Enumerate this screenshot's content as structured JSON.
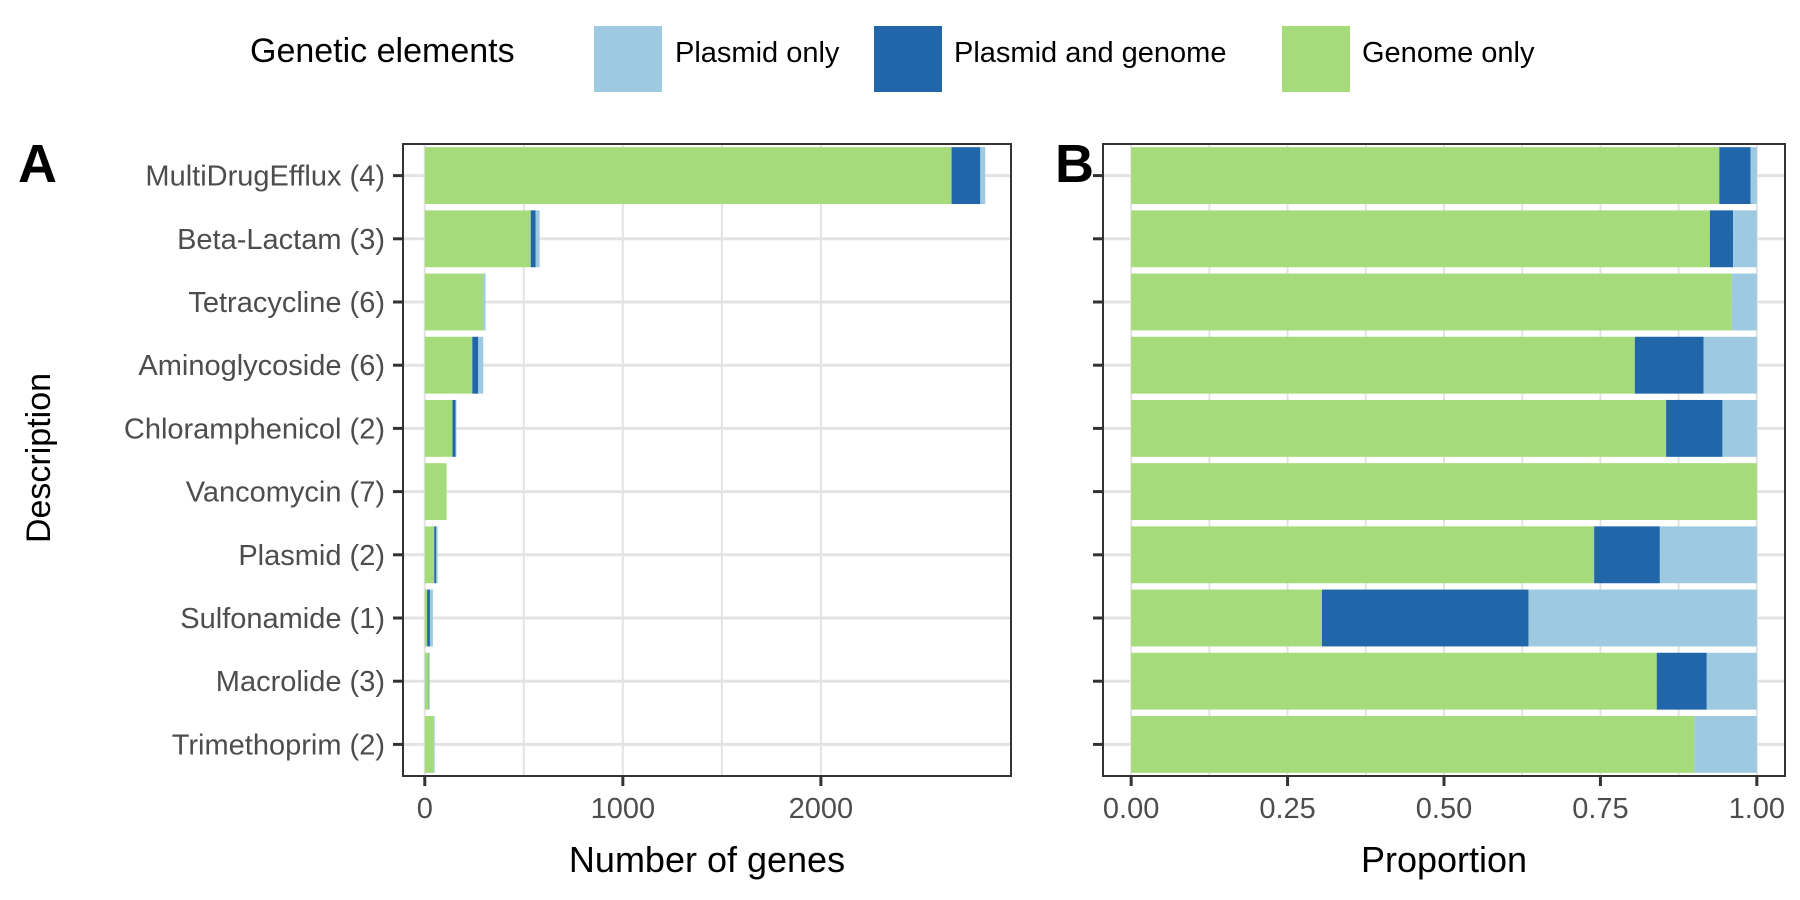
{
  "legend": {
    "title": "Genetic elements",
    "items": [
      {
        "label": "Plasmid only",
        "color": "#9ecae1"
      },
      {
        "label": "Plasmid and genome",
        "color": "#2066a8"
      },
      {
        "label": "Genome only",
        "color": "#a6db7b"
      }
    ]
  },
  "colors": {
    "genome_only": "#a6db7b",
    "plasmid_and_genome": "#2066a8",
    "plasmid_only": "#9ecae1",
    "grid": "#e3e3e3",
    "axis_text": "#4d4d4d",
    "panel_border": "#333333"
  },
  "y_axis_label": "Description",
  "categories": [
    "MultiDrugEfflux (4)",
    "Beta-Lactam (3)",
    "Tetracycline (6)",
    "Aminoglycoside (6)",
    "Chloramphenicol (2)",
    "Vancomycin (7)",
    "Plasmid (2)",
    "Sulfonamide (1)",
    "Macrolide (3)",
    "Trimethoprim (2)"
  ],
  "chart_data": [
    {
      "panel": "A",
      "type": "bar",
      "orientation": "horizontal",
      "stacked": true,
      "xlabel": "Number of genes",
      "ylabel": "Description",
      "xlim": [
        -110,
        2960
      ],
      "xticks": [
        0,
        1000,
        2000
      ],
      "grid": true,
      "legend_position": "top",
      "categories": [
        "MultiDrugEfflux (4)",
        "Beta-Lactam (3)",
        "Tetracycline (6)",
        "Aminoglycoside (6)",
        "Chloramphenicol (2)",
        "Vancomycin (7)",
        "Plasmid (2)",
        "Sulfonamide (1)",
        "Macrolide (3)",
        "Trimethoprim (2)"
      ],
      "series": [
        {
          "name": "Genome only",
          "color": "#a6db7b",
          "values": [
            2660,
            535,
            295,
            240,
            140,
            110,
            48,
            12,
            20,
            45
          ]
        },
        {
          "name": "Plasmid and genome",
          "color": "#2066a8",
          "values": [
            145,
            25,
            0,
            30,
            15,
            0,
            10,
            14,
            2,
            0
          ]
        },
        {
          "name": "Plasmid only",
          "color": "#9ecae1",
          "values": [
            25,
            20,
            12,
            25,
            5,
            0,
            7,
            15,
            3,
            5
          ]
        }
      ]
    },
    {
      "panel": "B",
      "type": "bar",
      "orientation": "horizontal",
      "stacked": true,
      "xlabel": "Proportion",
      "xlim": [
        -0.045,
        1.045
      ],
      "xticks": [
        "0.00",
        "0.25",
        "0.50",
        "0.75",
        "1.00"
      ],
      "xtick_values": [
        0,
        0.25,
        0.5,
        0.75,
        1.0
      ],
      "grid": true,
      "legend_position": "top",
      "categories": [
        "MultiDrugEfflux (4)",
        "Beta-Lactam (3)",
        "Tetracycline (6)",
        "Aminoglycoside (6)",
        "Chloramphenicol (2)",
        "Vancomycin (7)",
        "Plasmid (2)",
        "Sulfonamide (1)",
        "Macrolide (3)",
        "Trimethoprim (2)"
      ],
      "series": [
        {
          "name": "Genome only",
          "color": "#a6db7b",
          "values": [
            0.94,
            0.925,
            0.96,
            0.805,
            0.855,
            1.0,
            0.74,
            0.305,
            0.84,
            0.9
          ]
        },
        {
          "name": "Plasmid and genome",
          "color": "#2066a8",
          "values": [
            0.05,
            0.037,
            0.0,
            0.11,
            0.09,
            0.0,
            0.105,
            0.33,
            0.08,
            0.0
          ]
        },
        {
          "name": "Plasmid only",
          "color": "#9ecae1",
          "values": [
            0.01,
            0.038,
            0.04,
            0.085,
            0.055,
            0.0,
            0.155,
            0.365,
            0.08,
            0.1
          ]
        }
      ]
    }
  ]
}
